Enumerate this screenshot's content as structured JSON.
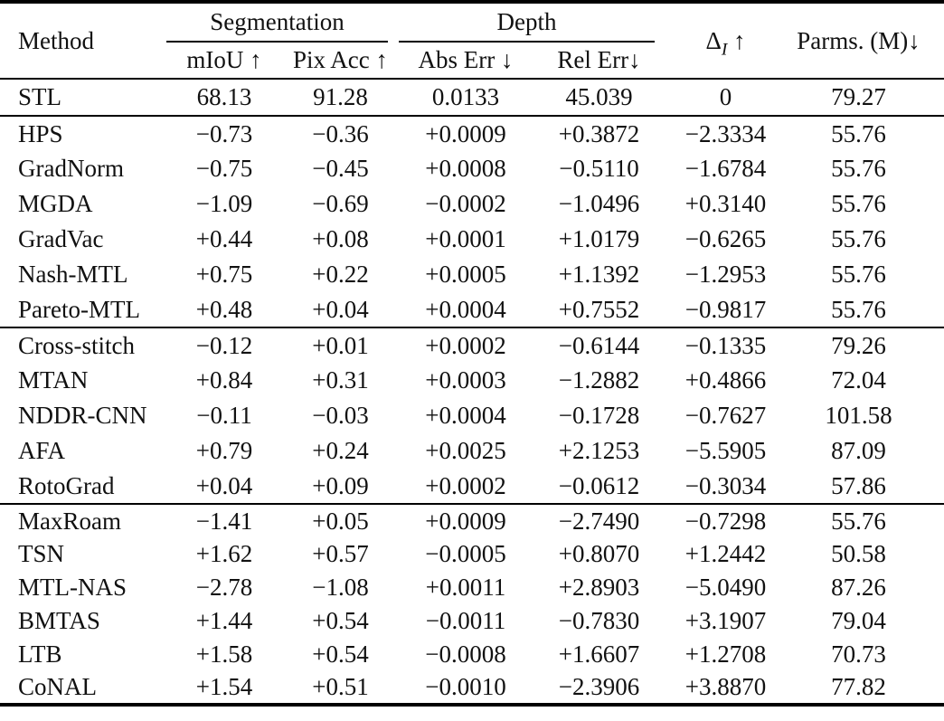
{
  "table": {
    "header": {
      "method": "Method",
      "seg_group": "Segmentation",
      "depth_group": "Depth",
      "seg_cols": [
        "mIoU ↑",
        "Pix Acc ↑"
      ],
      "depth_cols": [
        "Abs Err ↓",
        "Rel Err↓"
      ],
      "delta_symbol": "Δ",
      "delta_sub": "I",
      "delta_arrow": "↑",
      "parms": "Parms. (M)↓"
    },
    "sections": [
      {
        "rows": [
          {
            "method": "STL",
            "cells": [
              "68.13",
              "91.28",
              "0.0133",
              "45.039",
              "0",
              "79.27"
            ]
          }
        ]
      },
      {
        "rows": [
          {
            "method": "HPS",
            "cells": [
              "−0.73",
              "−0.36",
              "+0.0009",
              "+0.3872",
              "−2.3334",
              "55.76"
            ]
          },
          {
            "method": "GradNorm",
            "cells": [
              "−0.75",
              "−0.45",
              "+0.0008",
              "−0.5110",
              "−1.6784",
              "55.76"
            ]
          },
          {
            "method": "MGDA",
            "cells": [
              "−1.09",
              "−0.69",
              "−0.0002",
              "−1.0496",
              "+0.3140",
              "55.76"
            ]
          },
          {
            "method": "GradVac",
            "cells": [
              "+0.44",
              "+0.08",
              "+0.0001",
              "+1.0179",
              "−0.6265",
              "55.76"
            ]
          },
          {
            "method": "Nash-MTL",
            "cells": [
              "+0.75",
              "+0.22",
              "+0.0005",
              "+1.1392",
              "−1.2953",
              "55.76"
            ]
          },
          {
            "method": "Pareto-MTL",
            "cells": [
              "+0.48",
              "+0.04",
              "+0.0004",
              "+0.7552",
              "−0.9817",
              "55.76"
            ]
          }
        ]
      },
      {
        "rows": [
          {
            "method": "Cross-stitch",
            "cells": [
              "−0.12",
              "+0.01",
              "+0.0002",
              "−0.6144",
              "−0.1335",
              "79.26"
            ]
          },
          {
            "method": "MTAN",
            "cells": [
              "+0.84",
              "+0.31",
              "+0.0003",
              "−1.2882",
              "+0.4866",
              "72.04"
            ]
          },
          {
            "method": "NDDR-CNN",
            "cells": [
              "−0.11",
              "−0.03",
              "+0.0004",
              "−0.1728",
              "−0.7627",
              "101.58"
            ]
          },
          {
            "method": "AFA",
            "cells": [
              "+0.79",
              "+0.24",
              "+0.0025",
              "+2.1253",
              "−5.5905",
              "87.09"
            ]
          },
          {
            "method": "RotoGrad",
            "cells": [
              "+0.04",
              "+0.09",
              "+0.0002",
              "−0.0612",
              "−0.3034",
              "57.86"
            ]
          }
        ]
      },
      {
        "rows": [
          {
            "method": "MaxRoam",
            "cells": [
              "−1.41",
              "+0.05",
              "+0.0009",
              "−2.7490",
              "−0.7298",
              "55.76"
            ]
          },
          {
            "method": "TSN",
            "cells": [
              "+1.62",
              "+0.57",
              "−0.0005",
              "+0.8070",
              "+1.2442",
              "50.58"
            ]
          },
          {
            "method": "MTL-NAS",
            "cells": [
              "−2.78",
              "−1.08",
              "+0.0011",
              "+2.8903",
              "−5.0490",
              "87.26"
            ]
          },
          {
            "method": "BMTAS",
            "cells": [
              "+1.44",
              "+0.54",
              "−0.0011",
              "−0.7830",
              "+3.1907",
              "79.04"
            ]
          },
          {
            "method": "LTB",
            "cells": [
              "+1.58",
              "+0.54",
              "−0.0008",
              "+1.6607",
              "+1.2708",
              "70.73"
            ]
          },
          {
            "method": "CoNAL",
            "cells": [
              "+1.54",
              "+0.51",
              "−0.0010",
              "−2.3906",
              "+3.8870",
              "77.82"
            ]
          }
        ]
      }
    ]
  }
}
